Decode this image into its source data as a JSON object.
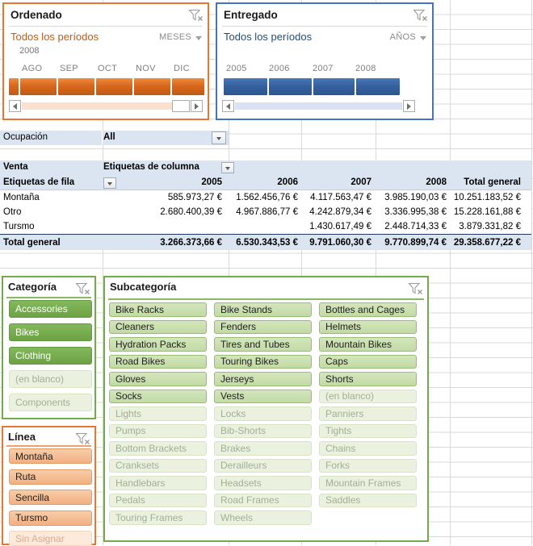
{
  "timelines": [
    {
      "id": "ordenado",
      "title": "Ordenado",
      "range_label": "Todos los períodos",
      "level_label": "MESES",
      "year_label": "2008",
      "ticks": [
        "AGO",
        "SEP",
        "OCT",
        "NOV",
        "DIC"
      ]
    },
    {
      "id": "entregado",
      "title": "Entregado",
      "range_label": "Todos los períodos",
      "level_label": "AÑOS",
      "ticks": [
        "2005",
        "2006",
        "2007",
        "2008"
      ]
    }
  ],
  "filter_row": {
    "label": "Ocupación",
    "value": "All"
  },
  "pivot": {
    "measure_label": "Venta",
    "column_area_label": "Etiquetas de columna",
    "row_area_label": "Etiquetas de fila",
    "columns": [
      "2005",
      "2006",
      "2007",
      "2008",
      "Total general"
    ],
    "rows": [
      {
        "label": "Montaña",
        "values": [
          "585.973,27 €",
          "1.562.456,76 €",
          "4.117.563,47 €",
          "3.985.190,03 €",
          "10.251.183,52 €"
        ]
      },
      {
        "label": "Otro",
        "values": [
          "2.680.400,39 €",
          "4.967.886,77 €",
          "4.242.879,34 €",
          "3.336.995,38 €",
          "15.228.161,88 €"
        ]
      },
      {
        "label": "Tursmo",
        "values": [
          "",
          "",
          "1.430.617,49 €",
          "2.448.714,33 €",
          "3.879.331,82 €"
        ]
      }
    ],
    "total_row": {
      "label": "Total general",
      "values": [
        "3.266.373,66 €",
        "6.530.343,53 €",
        "9.791.060,30 €",
        "9.770.899,74 €",
        "29.358.677,22 €"
      ]
    }
  },
  "slicers": [
    {
      "id": "categoria",
      "title": "Categoría",
      "style": "green-strong",
      "items": [
        {
          "label": "Accessories",
          "state": "selected"
        },
        {
          "label": "Bikes",
          "state": "selected"
        },
        {
          "label": "Clothing",
          "state": "selected"
        },
        {
          "label": "(en blanco)",
          "state": "empty"
        },
        {
          "label": "Components",
          "state": "empty"
        }
      ]
    },
    {
      "id": "subcategoria",
      "title": "Subcategoría",
      "style": "green-soft",
      "items": [
        {
          "label": "Bike Racks",
          "state": "selected"
        },
        {
          "label": "Bike Stands",
          "state": "selected"
        },
        {
          "label": "Bottles and Cages",
          "state": "selected"
        },
        {
          "label": "Cleaners",
          "state": "selected"
        },
        {
          "label": "Fenders",
          "state": "selected"
        },
        {
          "label": "Helmets",
          "state": "selected"
        },
        {
          "label": "Hydration Packs",
          "state": "selected"
        },
        {
          "label": "Tires and Tubes",
          "state": "selected"
        },
        {
          "label": "Mountain Bikes",
          "state": "selected"
        },
        {
          "label": "Road Bikes",
          "state": "selected"
        },
        {
          "label": "Touring Bikes",
          "state": "selected"
        },
        {
          "label": "Caps",
          "state": "selected"
        },
        {
          "label": "Gloves",
          "state": "selected"
        },
        {
          "label": "Jerseys",
          "state": "selected"
        },
        {
          "label": "Shorts",
          "state": "selected"
        },
        {
          "label": "Socks",
          "state": "selected"
        },
        {
          "label": "Vests",
          "state": "selected"
        },
        {
          "label": "(en blanco)",
          "state": "empty"
        },
        {
          "label": "Lights",
          "state": "empty"
        },
        {
          "label": "Locks",
          "state": "empty"
        },
        {
          "label": "Panniers",
          "state": "empty"
        },
        {
          "label": "Pumps",
          "state": "empty"
        },
        {
          "label": "Bib-Shorts",
          "state": "empty"
        },
        {
          "label": "Tights",
          "state": "empty"
        },
        {
          "label": "Bottom Brackets",
          "state": "empty"
        },
        {
          "label": "Brakes",
          "state": "empty"
        },
        {
          "label": "Chains",
          "state": "empty"
        },
        {
          "label": "Cranksets",
          "state": "empty"
        },
        {
          "label": "Derailleurs",
          "state": "empty"
        },
        {
          "label": "Forks",
          "state": "empty"
        },
        {
          "label": "Handlebars",
          "state": "empty"
        },
        {
          "label": "Headsets",
          "state": "empty"
        },
        {
          "label": "Mountain Frames",
          "state": "empty"
        },
        {
          "label": "Pedals",
          "state": "empty"
        },
        {
          "label": "Road Frames",
          "state": "empty"
        },
        {
          "label": "Saddles",
          "state": "empty"
        },
        {
          "label": "Touring Frames",
          "state": "empty"
        },
        {
          "label": "Wheels",
          "state": "empty"
        }
      ]
    },
    {
      "id": "linea",
      "title": "Línea",
      "style": "orange",
      "items": [
        {
          "label": "Montaña",
          "state": "selected"
        },
        {
          "label": "Ruta",
          "state": "selected"
        },
        {
          "label": "Sencilla",
          "state": "selected"
        },
        {
          "label": "Tursmo",
          "state": "selected"
        },
        {
          "label": "Sin Asignar",
          "state": "empty"
        }
      ]
    }
  ]
}
